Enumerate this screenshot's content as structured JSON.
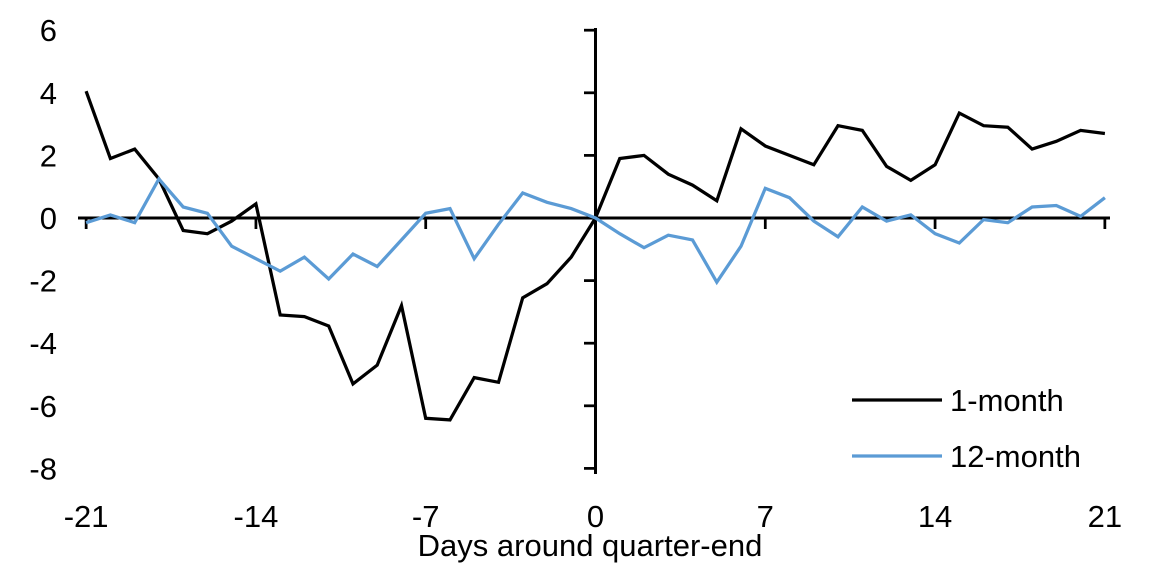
{
  "chart_data": {
    "type": "line",
    "xlabel": "Days around quarter-end",
    "ylabel": "",
    "x": [
      -21,
      -20,
      -19,
      -18,
      -17,
      -16,
      -15,
      -14,
      -13,
      -12,
      -11,
      -10,
      -9,
      -8,
      -7,
      -6,
      -5,
      -4,
      -3,
      -2,
      -1,
      0,
      1,
      2,
      3,
      4,
      5,
      6,
      7,
      8,
      9,
      10,
      11,
      12,
      13,
      14,
      15,
      16,
      17,
      18,
      19,
      20,
      21
    ],
    "series": [
      {
        "name": "1-month",
        "color": "#000000",
        "values": [
          4.05,
          1.9,
          2.2,
          1.25,
          -0.4,
          -0.5,
          -0.1,
          0.45,
          -3.1,
          -3.15,
          -3.45,
          -5.3,
          -4.7,
          -2.8,
          -6.4,
          -6.45,
          -5.1,
          -5.25,
          -2.55,
          -2.1,
          -1.25,
          0,
          1.9,
          2.0,
          1.4,
          1.05,
          0.55,
          2.85,
          2.3,
          2.0,
          1.7,
          2.95,
          2.8,
          1.65,
          1.2,
          1.7,
          3.35,
          2.95,
          2.9,
          2.2,
          2.45,
          2.8,
          2.7
        ]
      },
      {
        "name": "12-month",
        "color": "#5B9BD5",
        "values": [
          -0.15,
          0.1,
          -0.15,
          1.25,
          0.35,
          0.15,
          -0.9,
          -1.3,
          -1.7,
          -1.25,
          -1.95,
          -1.15,
          -1.55,
          -0.7,
          0.15,
          0.3,
          -1.3,
          -0.2,
          0.8,
          0.5,
          0.3,
          0,
          -0.5,
          -0.95,
          -0.55,
          -0.7,
          -2.05,
          -0.9,
          0.95,
          0.65,
          -0.1,
          -0.6,
          0.35,
          -0.1,
          0.1,
          -0.5,
          -0.8,
          -0.05,
          -0.15,
          0.35,
          0.4,
          0.05,
          0.65
        ]
      }
    ],
    "xticks": [
      -21,
      -14,
      -7,
      0,
      7,
      14,
      21
    ],
    "yticks": [
      6,
      4,
      2,
      0,
      -2,
      -4,
      -6,
      -8
    ],
    "xlim": [
      -21.5,
      21.5
    ],
    "ylim": [
      -8,
      6
    ],
    "grid": false,
    "legend_position": "lower-right",
    "axis_color": "#000000"
  }
}
